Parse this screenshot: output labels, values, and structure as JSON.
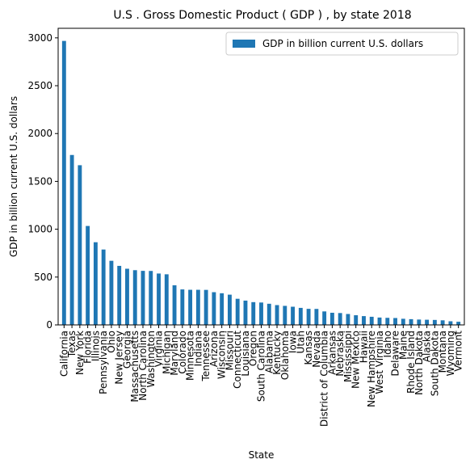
{
  "chart_data": {
    "type": "bar",
    "title": "U.S . Gross Domestic Product ( GDP ) , by state 2018",
    "xlabel": "State",
    "ylabel": "GDP in billion current U.S. dollars",
    "ylim": [
      0,
      3100
    ],
    "yticks": [
      0,
      500,
      1000,
      1500,
      2000,
      2500,
      3000
    ],
    "legend": {
      "position": "top-right"
    },
    "grid": false,
    "color": "#1f77b4",
    "categories": [
      "California",
      "Texas",
      "New York",
      "Florida",
      "Illinois",
      "Pennsylvania",
      "Ohio",
      "New Jersey",
      "Georgia",
      "Massachusetts",
      "North Carolina",
      "Washington",
      "Virginia",
      "Michigan",
      "Maryland",
      "Colorado",
      "Minnesota",
      "Indiana",
      "Tennessee",
      "Arizona",
      "Wisconsin",
      "Missouri",
      "Connecticut",
      "Louisiana",
      "Oregon",
      "South Carolina",
      "Alabama",
      "Kentucky",
      "Oklahoma",
      "Iowa",
      "Utah",
      "Kansas",
      "Nevada",
      "District of Columbia",
      "Arkansas",
      "Nebraska",
      "Mississippi",
      "New Mexico",
      "Hawaii",
      "New Hampshire",
      "West Virginia",
      "Idaho",
      "Delaware",
      "Maine",
      "Rhode Island",
      "North Dakota",
      "Alaska",
      "South Dakota",
      "Montana",
      "Wyoming",
      "Vermont"
    ],
    "series": [
      {
        "name": "GDP in billion current U.S. dollars",
        "values": [
          2968,
          1776,
          1669,
          1034,
          864,
          788,
          670,
          617,
          587,
          572,
          565,
          564,
          537,
          529,
          414,
          371,
          367,
          367,
          366,
          342,
          331,
          316,
          273,
          254,
          238,
          234,
          221,
          207,
          199,
          190,
          178,
          168,
          167,
          141,
          127,
          124,
          114,
          101,
          92,
          85,
          77,
          74,
          72,
          64,
          60,
          56,
          54,
          52,
          48,
          38,
          33
        ]
      }
    ]
  }
}
